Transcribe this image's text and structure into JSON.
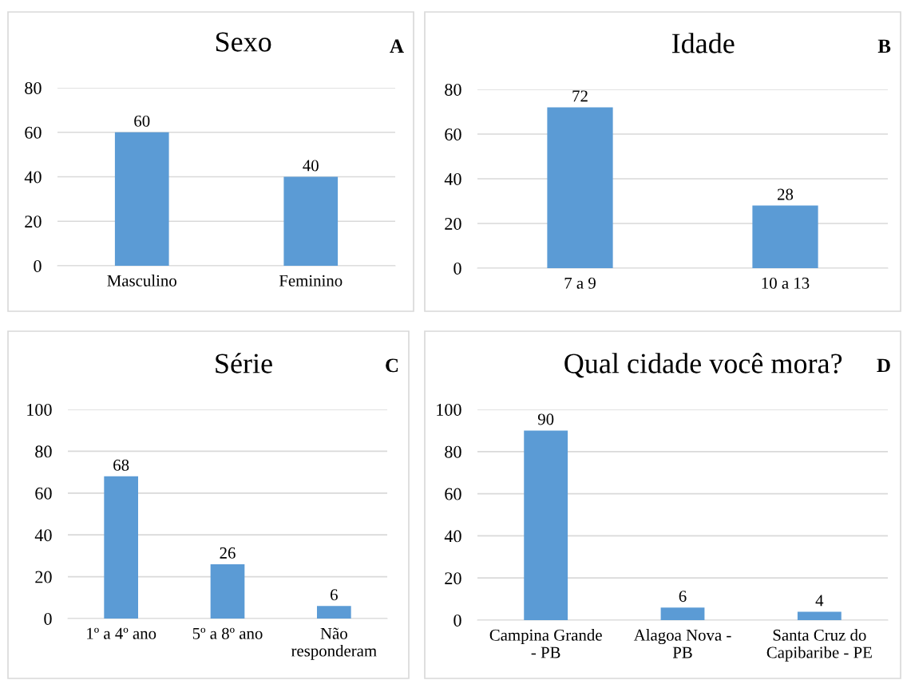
{
  "chart_data": [
    {
      "type": "bar",
      "title": "Sexo",
      "categories": [
        "Masculino",
        "Feminino"
      ],
      "values": [
        60,
        40
      ],
      "color": "#5b9bd5",
      "ylim": [
        0,
        80
      ],
      "yticks": [
        0,
        20,
        40,
        60,
        80
      ],
      "grid": "y",
      "data_labels": true,
      "annotations": [
        "A"
      ]
    },
    {
      "type": "bar",
      "title": "Idade",
      "categories": [
        "7 a 9",
        "10 a 13"
      ],
      "values": [
        72,
        28
      ],
      "color": "#5b9bd5",
      "ylim": [
        0,
        80
      ],
      "yticks": [
        0,
        20,
        40,
        60,
        80
      ],
      "grid": "y",
      "data_labels": true,
      "annotations": [
        "B"
      ]
    },
    {
      "type": "bar",
      "title": "Série",
      "categories": [
        "1º a 4º ano",
        "5º a 8º ano",
        "Não\nresponderam"
      ],
      "values": [
        68,
        26,
        6
      ],
      "color": "#5b9bd5",
      "ylim": [
        0,
        100
      ],
      "yticks": [
        0,
        20,
        40,
        60,
        80,
        100
      ],
      "grid": "y",
      "data_labels": true,
      "annotations": [
        "C"
      ]
    },
    {
      "type": "bar",
      "title": "Qual cidade você mora?",
      "categories": [
        "Campina Grande\n- PB",
        "Alagoa Nova -\nPB",
        "Santa Cruz do\nCapibaribe - PE"
      ],
      "values": [
        90,
        6,
        4
      ],
      "color": "#5b9bd5",
      "ylim": [
        0,
        100
      ],
      "yticks": [
        0,
        20,
        40,
        60,
        80,
        100
      ],
      "grid": "y",
      "data_labels": true,
      "annotations": [
        "D"
      ]
    }
  ]
}
